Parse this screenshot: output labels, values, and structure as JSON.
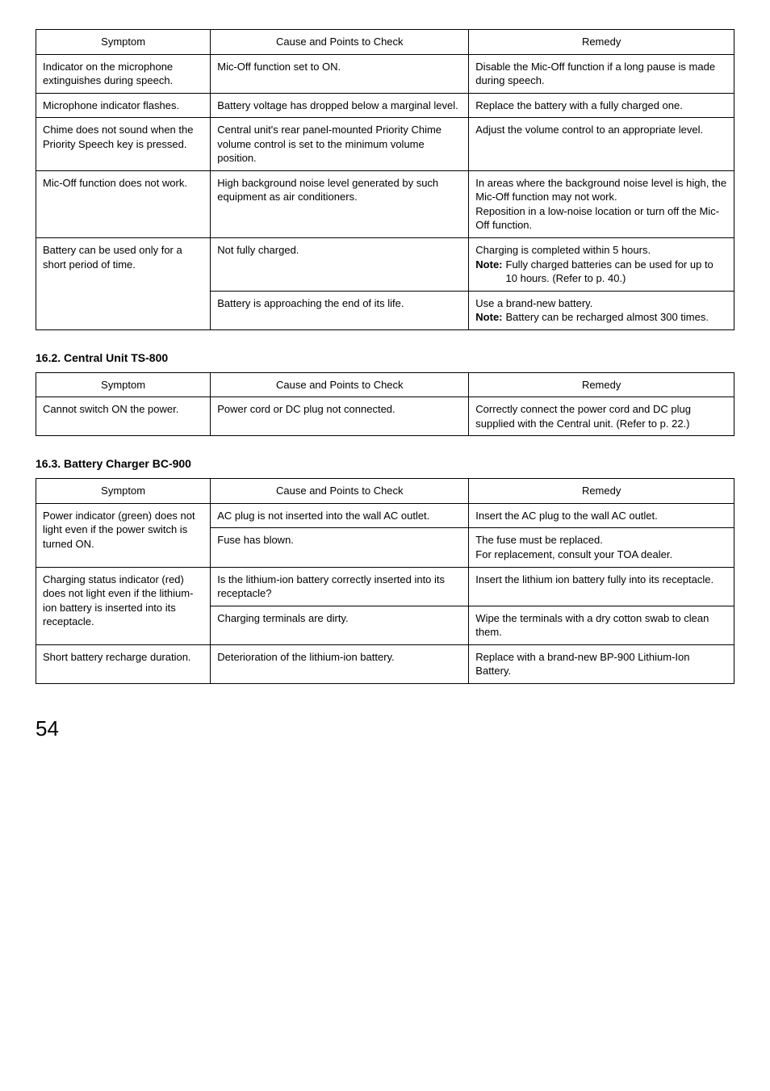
{
  "tables": {
    "main": {
      "headers": {
        "symptom": "Symptom",
        "cause": "Cause and Points to Check",
        "remedy": "Remedy"
      },
      "rows": [
        {
          "symptom": "Indicator on the microphone extinguishes during speech.",
          "cause": "Mic-Off function set to ON.",
          "remedy": "Disable the Mic-Off function if a long pause is made during speech."
        },
        {
          "symptom": "Microphone indicator flashes.",
          "cause": "Battery voltage has dropped below a marginal level.",
          "remedy": "Replace the battery with a fully charged one."
        },
        {
          "symptom": "Chime does not sound when the Priority Speech key is pressed.",
          "cause": "Central unit's rear panel-mounted Priority Chime volume control is set to the minimum volume position.",
          "remedy": "Adjust the volume control to an appropriate level."
        },
        {
          "symptom": "Mic-Off function does not work.",
          "cause": "High background noise level generated by such equipment as air conditioners.",
          "remedy": "In areas where the background noise level is high, the Mic-Off function may not work.\nReposition in a low-noise location or turn off the Mic-Off function."
        },
        {
          "symptom": "Battery can be used only for a short period of time.",
          "cause1": "Not fully charged.",
          "remedy1_line": "Charging is completed within 5 hours.",
          "remedy1_note_label": "Note:",
          "remedy1_note_text": "Fully charged batteries can be used for up to 10 hours. (Refer to p. 40.)",
          "cause2": "Battery is approaching the end of its life.",
          "remedy2_line": "Use a brand-new battery.",
          "remedy2_note_label": "Note:",
          "remedy2_note_text": "Battery can be recharged almost 300 times."
        }
      ]
    },
    "central": {
      "title": "16.2. Central Unit TS-800",
      "headers": {
        "symptom": "Symptom",
        "cause": "Cause and Points to Check",
        "remedy": "Remedy"
      },
      "rows": [
        {
          "symptom": "Cannot switch ON the power.",
          "cause": "Power cord or DC plug not connected.",
          "remedy": "Correctly connect the power cord and DC plug supplied with the Central unit. (Refer to p. 22.)"
        }
      ]
    },
    "charger": {
      "title": "16.3. Battery Charger BC-900",
      "headers": {
        "symptom": "Symptom",
        "cause": "Cause and Points to Check",
        "remedy": "Remedy"
      },
      "rows": [
        {
          "symptom": "Power indicator (green) does not light even if the power switch is turned ON.",
          "cause1": "AC plug is not inserted into the wall AC outlet.",
          "remedy1": "Insert the AC plug to the wall AC outlet.",
          "cause2": "Fuse has blown.",
          "remedy2": "The fuse must be replaced.\nFor replacement, consult your TOA dealer."
        },
        {
          "symptom": "Charging status indicator (red) does not light even if the lithium-ion battery is inserted into its receptacle.",
          "cause1": "Is the lithium-ion battery correctly inserted into its receptacle?",
          "remedy1": "Insert the lithium ion battery fully into its receptacle.",
          "cause2": "Charging terminals are dirty.",
          "remedy2": "Wipe the terminals with a dry cotton swab to clean them."
        },
        {
          "symptom": "Short battery recharge duration.",
          "cause": "Deterioration of the lithium-ion battery.",
          "remedy": "Replace with a brand-new BP-900 Lithium-Ion Battery."
        }
      ]
    }
  },
  "page_number": "54"
}
